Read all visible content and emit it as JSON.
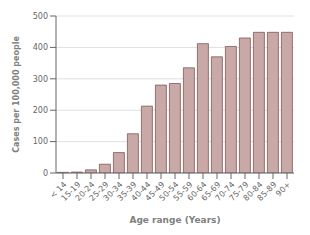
{
  "chart_data": {
    "type": "bar",
    "categories": [
      "< 14",
      "15-19",
      "20-24",
      "25-29",
      "30-34",
      "35-39",
      "40-44",
      "45-49",
      "50-54",
      "55-59",
      "60-64",
      "65-69",
      "70-74",
      "75-79",
      "80-84",
      "85-89",
      "90+"
    ],
    "values": [
      2,
      3,
      10,
      28,
      65,
      125,
      213,
      280,
      285,
      335,
      412,
      370,
      403,
      430,
      448,
      448,
      448
    ],
    "color": "#c9a8a8",
    "xlabel": "Age range (Years)",
    "ylabel": "Cases per 100,000 people",
    "ylim": [
      0,
      500
    ],
    "yticks": [
      0,
      100,
      200,
      300,
      400,
      500
    ],
    "grid": true
  }
}
